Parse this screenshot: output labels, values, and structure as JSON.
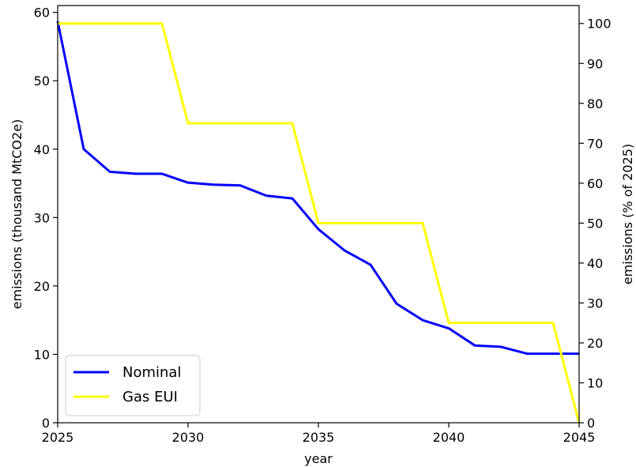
{
  "chart_data": {
    "type": "line",
    "xlabel": "year",
    "ylabel_left": "emissions (thousand MtCO2e)",
    "ylabel_right": "emissions (% of 2025)",
    "xlim": [
      2025,
      2045
    ],
    "ylim_left": [
      0,
      61
    ],
    "ylim_right": [
      0,
      104.5
    ],
    "x_ticks": [
      "2025",
      "2030",
      "2035",
      "2040",
      "2045"
    ],
    "y_left_ticks": [
      "0",
      "10",
      "20",
      "30",
      "40",
      "50",
      "60"
    ],
    "y_right_ticks": [
      "0",
      "10",
      "20",
      "30",
      "40",
      "50",
      "60",
      "70",
      "80",
      "90",
      "100"
    ],
    "grid": false,
    "legend_position": "lower-left",
    "series": [
      {
        "name": "Nominal",
        "color": "#0000ff",
        "axis": "left",
        "x": [
          2025,
          2026,
          2027,
          2028,
          2029,
          2030,
          2031,
          2032,
          2033,
          2034,
          2035,
          2036,
          2037,
          2038,
          2039,
          2040,
          2041,
          2042,
          2043,
          2044,
          2045
        ],
        "y": [
          58.7,
          40.0,
          36.7,
          36.4,
          36.4,
          35.1,
          34.8,
          34.7,
          33.2,
          32.8,
          28.3,
          25.2,
          23.1,
          17.4,
          15.0,
          13.8,
          11.3,
          11.1,
          10.1,
          10.1,
          10.1
        ]
      },
      {
        "name": "Gas EUI",
        "color": "#ffff00",
        "axis": "right",
        "x": [
          2025,
          2026,
          2027,
          2028,
          2029,
          2030,
          2031,
          2032,
          2033,
          2034,
          2035,
          2036,
          2037,
          2038,
          2039,
          2040,
          2041,
          2042,
          2043,
          2044,
          2045
        ],
        "y": [
          100,
          100,
          100,
          100,
          100,
          75,
          75,
          75,
          75,
          75,
          50,
          50,
          50,
          50,
          50,
          25,
          25,
          25,
          25,
          25,
          0
        ]
      }
    ]
  }
}
